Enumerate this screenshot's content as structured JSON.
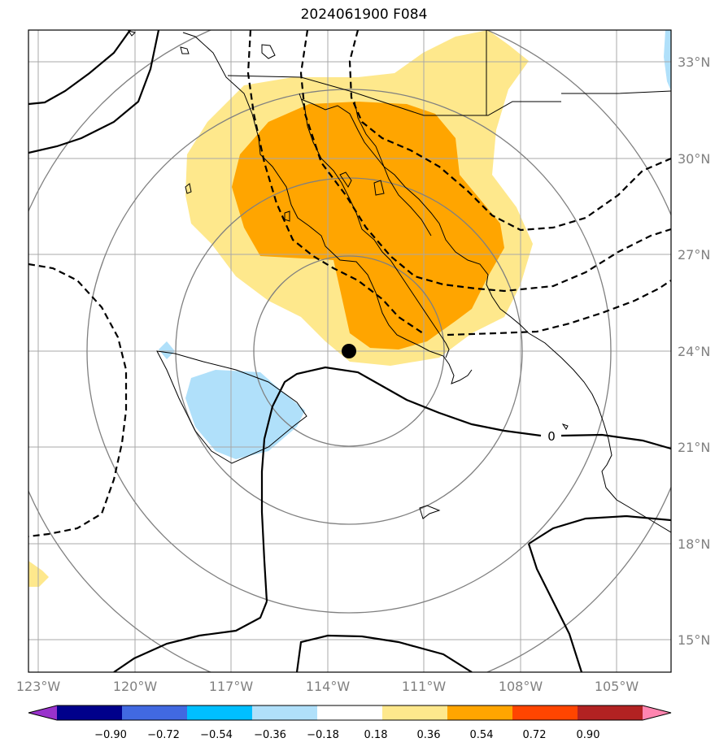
{
  "title": "2024061900 F084",
  "map": {
    "lat_labels": [
      "33°N",
      "30°N",
      "27°N",
      "24°N",
      "21°N",
      "18°N",
      "15°N"
    ],
    "lon_labels": [
      "123°W",
      "120°W",
      "117°W",
      "114°W",
      "111°W",
      "108°W",
      "105°W"
    ],
    "extent": {
      "lon_min": -123.3,
      "lon_max": -103.3,
      "lat_min": 14.0,
      "lat_max": 34.0
    },
    "contour_label": "0",
    "storm_center": {
      "lon": -113.7,
      "lat": 24.0
    },
    "gridlines": true
  },
  "colorbar": {
    "tick_labels": [
      "−0.90",
      "−0.72",
      "−0.54",
      "−0.36",
      "−0.18",
      "0.18",
      "0.36",
      "0.54",
      "0.72",
      "0.90"
    ],
    "colors": [
      "#9932cc",
      "#00008b",
      "#4169e1",
      "#00bfff",
      "#b0e0fa",
      "#ffffff",
      "#fee88c",
      "#ffa500",
      "#ff4500",
      "#b22222",
      "#ff85b0"
    ]
  }
}
